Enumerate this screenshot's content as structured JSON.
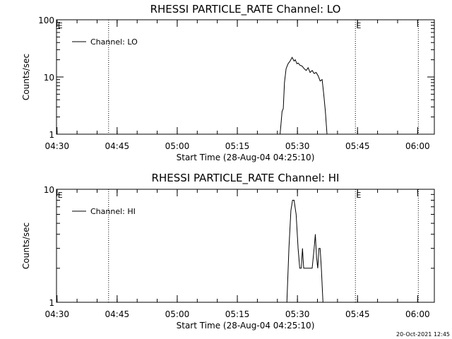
{
  "timestamp": "20-Oct-2021 12:45",
  "chart_data": [
    {
      "type": "line",
      "title": "RHESSI PARTICLE_RATE Channel: LO",
      "xlabel": "Start Time (28-Aug-04 04:25:10)",
      "ylabel": "Counts/sec",
      "yscale": "log",
      "ylim": [
        1,
        100
      ],
      "yticks": [
        1,
        10,
        100
      ],
      "yticklabels": [
        "1",
        "10",
        "100"
      ],
      "xlim_minutes": [
        4.7,
        99
      ],
      "xticks_minutes": [
        4.83,
        19.83,
        34.83,
        49.83,
        64.83,
        79.83,
        94.83
      ],
      "xticklabels": [
        "04:30",
        "04:45",
        "05:00",
        "05:15",
        "05:30",
        "05:45",
        "06:00"
      ],
      "vlines_minutes": [
        17.7,
        79.3,
        95.0
      ],
      "event_markers": [
        {
          "label": "E",
          "minute": 5.0
        },
        {
          "label": "E",
          "minute": 79.5
        }
      ],
      "legend": {
        "label": "Channel: LO",
        "position": "top-left"
      },
      "grid": false,
      "series": [
        {
          "name": "Channel: LO",
          "x": [
            60.5,
            61.0,
            61.3,
            61.6,
            62.0,
            62.5,
            63.0,
            63.5,
            64.0,
            64.3,
            64.7,
            65.0,
            65.5,
            66.0,
            66.5,
            67.0,
            67.5,
            68.0,
            68.5,
            69.0,
            69.5,
            70.0,
            70.5,
            71.0,
            71.4,
            71.8,
            72.2
          ],
          "y": [
            1.0,
            2.5,
            2.8,
            8.0,
            14.0,
            17.0,
            19.0,
            22.0,
            19.0,
            20.0,
            17.0,
            17.5,
            16.0,
            15.5,
            14.0,
            13.0,
            14.5,
            12.0,
            13.0,
            11.5,
            12.0,
            10.5,
            8.5,
            9.0,
            5.0,
            2.5,
            1.0
          ]
        }
      ]
    },
    {
      "type": "line",
      "title": "RHESSI PARTICLE_RATE Channel: HI",
      "xlabel": "Start Time (28-Aug-04 04:25:10)",
      "ylabel": "Counts/sec",
      "yscale": "log",
      "ylim": [
        1,
        10
      ],
      "yticks": [
        1,
        10
      ],
      "yticklabels": [
        "1",
        "10"
      ],
      "xlim_minutes": [
        4.7,
        99
      ],
      "xticks_minutes": [
        4.83,
        19.83,
        34.83,
        49.83,
        64.83,
        79.83,
        94.83
      ],
      "xticklabels": [
        "04:30",
        "04:45",
        "05:00",
        "05:15",
        "05:30",
        "05:45",
        "06:00"
      ],
      "vlines_minutes": [
        17.7,
        79.3,
        95.0
      ],
      "event_markers": [
        {
          "label": "E",
          "minute": 5.0
        },
        {
          "label": "E",
          "minute": 79.5
        }
      ],
      "legend": {
        "label": "Channel: HI",
        "position": "top-left"
      },
      "grid": false,
      "series": [
        {
          "name": "Channel: HI",
          "x": [
            62.2,
            62.7,
            63.2,
            63.6,
            64.0,
            64.5,
            65.0,
            65.4,
            65.8,
            66.1,
            66.4,
            66.7,
            67.0,
            67.3,
            67.6,
            68.0,
            68.5,
            69.0,
            69.3,
            69.6,
            69.9,
            70.2,
            70.5,
            70.8,
            71.2
          ],
          "y": [
            1.0,
            3.0,
            6.5,
            8.0,
            8.0,
            6.0,
            3.0,
            2.0,
            2.0,
            3.0,
            2.0,
            2.0,
            2.0,
            2.0,
            2.0,
            2.0,
            2.0,
            3.0,
            4.0,
            2.5,
            2.0,
            3.0,
            3.0,
            2.0,
            1.0
          ]
        }
      ]
    }
  ]
}
